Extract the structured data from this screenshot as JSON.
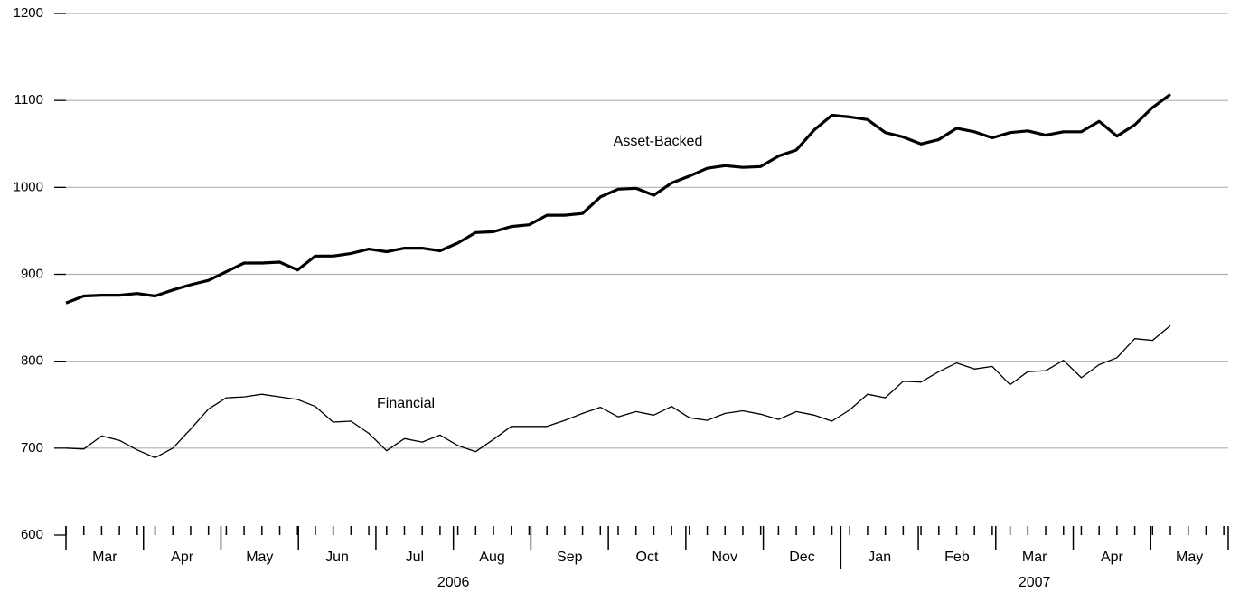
{
  "chart_data": {
    "type": "line",
    "series": [
      {
        "name": "Asset-Backed",
        "color": "#000000",
        "width": 3.2,
        "values": [
          867,
          875,
          876,
          876,
          878,
          875,
          882,
          888,
          893,
          903,
          913,
          913,
          914,
          905,
          921,
          921,
          924,
          929,
          926,
          930,
          930,
          927,
          936,
          948,
          949,
          955,
          957,
          968,
          968,
          970,
          989,
          998,
          999,
          991,
          1005,
          1013,
          1022,
          1025,
          1023,
          1024,
          1036,
          1043,
          1066,
          1083,
          1081,
          1078,
          1063,
          1058,
          1050,
          1055,
          1068,
          1064,
          1057,
          1063,
          1065,
          1060,
          1064,
          1064,
          1076,
          1059,
          1072,
          1092,
          1107
        ]
      },
      {
        "name": "Financial",
        "color": "#000000",
        "width": 1.3,
        "values": [
          700,
          699,
          714,
          709,
          698,
          689,
          700,
          722,
          745,
          758,
          759,
          762,
          759,
          756,
          748,
          730,
          731,
          717,
          697,
          711,
          707,
          715,
          703,
          696,
          710,
          725,
          725,
          725,
          732,
          740,
          747,
          736,
          742,
          738,
          748,
          735,
          732,
          740,
          743,
          739,
          733,
          742,
          738,
          731,
          744,
          762,
          758,
          777,
          776,
          788,
          798,
          791,
          794,
          773,
          788,
          789,
          801,
          781,
          796,
          804,
          826,
          824,
          841
        ]
      }
    ],
    "months": [
      "Mar",
      "Apr",
      "May",
      "Jun",
      "Jul",
      "Aug",
      "Sep",
      "Oct",
      "Nov",
      "Dec",
      "Jan",
      "Feb",
      "Mar",
      "Apr",
      "May"
    ],
    "years": [
      "2006",
      "2007"
    ],
    "ylim": [
      600,
      1200
    ],
    "yticks": [
      600,
      700,
      800,
      900,
      1000,
      1100,
      1200
    ],
    "grid": true
  }
}
